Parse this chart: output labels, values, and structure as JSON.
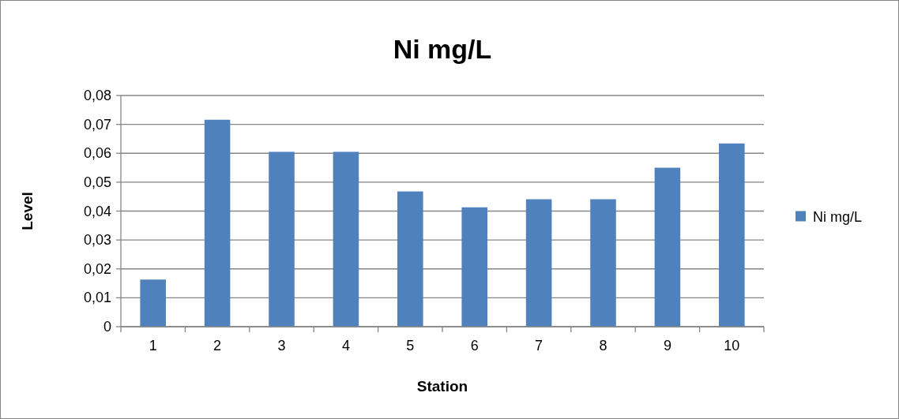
{
  "chart_data": {
    "type": "bar",
    "title": "Ni mg/L",
    "xlabel": "Station",
    "ylabel": "Level",
    "categories": [
      "1",
      "2",
      "3",
      "4",
      "5",
      "6",
      "7",
      "8",
      "9",
      "10"
    ],
    "series": [
      {
        "name": "Ni mg/L",
        "color": "#4f81bd",
        "values": [
          0.0163,
          0.0716,
          0.0605,
          0.0605,
          0.0468,
          0.0413,
          0.0441,
          0.0441,
          0.055,
          0.0634
        ]
      }
    ],
    "ylim": [
      0,
      0.08
    ],
    "yticks": [
      0,
      {
        "value": 0.01,
        "label": "0,01"
      },
      {
        "value": 0.02,
        "label": "0,02"
      },
      {
        "value": 0.03,
        "label": "0,03"
      },
      {
        "value": 0.04,
        "label": "0,04"
      },
      {
        "value": 0.05,
        "label": "0,05"
      },
      {
        "value": 0.06,
        "label": "0,06"
      },
      {
        "value": 0.07,
        "label": "0,07"
      },
      {
        "value": 0.08,
        "label": "0,08"
      }
    ],
    "grid": "y",
    "legend": "right"
  }
}
